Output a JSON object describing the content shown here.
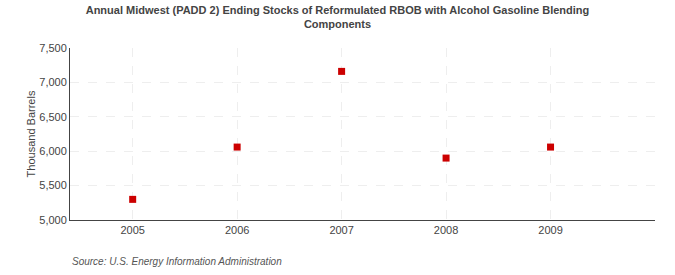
{
  "chart_data": {
    "type": "scatter",
    "title": "Annual Midwest (PADD 2) Ending Stocks of Reformulated RBOB with Alcohol Gasoline Blending\nComponents",
    "ylabel": "Thousand Barrels",
    "annotations": [
      "Source: U.S. Energy Information Administration"
    ],
    "x": [
      2005,
      2006,
      2007,
      2008,
      2009
    ],
    "values": [
      5300,
      6060,
      7160,
      5900,
      6060
    ],
    "color": "#cc0000",
    "marker": "square",
    "xlim": [
      2004.4,
      2010.0
    ],
    "xticks": [
      2005,
      2006,
      2007,
      2008,
      2009
    ],
    "ylim": [
      5000,
      7500
    ],
    "yticks": [
      {
        "value": 5000,
        "label": "5,000"
      },
      {
        "value": 5500,
        "label": "5,500"
      },
      {
        "value": 6000,
        "label": "6,000"
      },
      {
        "value": 6500,
        "label": "6,500"
      },
      {
        "value": 7000,
        "label": "7,000"
      },
      {
        "value": 7500,
        "label": "7,500"
      }
    ],
    "grid": true
  }
}
